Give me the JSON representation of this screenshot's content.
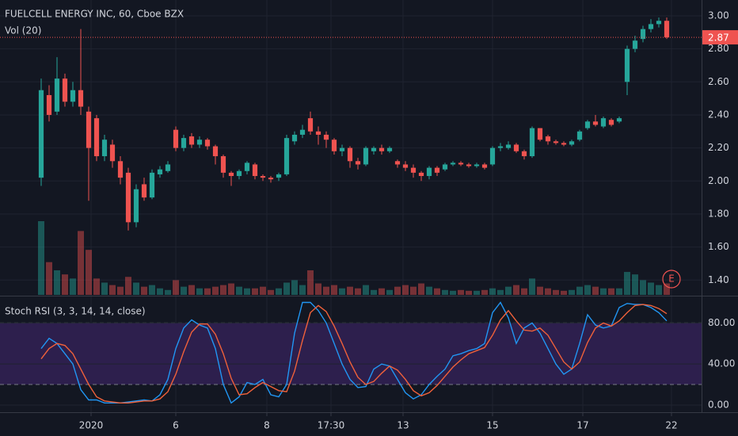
{
  "chart_data": [
    {
      "type": "candlestick",
      "title": "FUELCELL ENERGY INC, 60, Cboe BZX",
      "volume_label": "Vol (20)",
      "earnings_label": "E",
      "up_color": "#26a69a",
      "down_color": "#ef5350",
      "xlim": [
        -5.2,
        83.4
      ],
      "xticks": [
        {
          "value": 6.3,
          "label": "2020"
        },
        {
          "value": 17,
          "label": "6"
        },
        {
          "value": 28.5,
          "label": "8"
        },
        {
          "value": 36.6,
          "label": "17:30"
        },
        {
          "value": 45.7,
          "label": "13"
        },
        {
          "value": 57,
          "label": "15"
        },
        {
          "value": 68.4,
          "label": "17"
        },
        {
          "value": 79.6,
          "label": "22"
        }
      ],
      "ylim": [
        1.31,
        3.096
      ],
      "yticks": [
        {
          "value": 1.4,
          "label": "1.40"
        },
        {
          "value": 1.6,
          "label": "1.60"
        },
        {
          "value": 1.8,
          "label": "1.80"
        },
        {
          "value": 2.0,
          "label": "2.00"
        },
        {
          "value": 2.2,
          "label": "2.20"
        },
        {
          "value": 2.4,
          "label": "2.40"
        },
        {
          "value": 2.6,
          "label": "2.60"
        },
        {
          "value": 2.8,
          "label": "2.80"
        },
        {
          "value": 3.0,
          "label": "3.00"
        }
      ],
      "grid": true,
      "open": [
        2.02,
        2.52,
        2.42,
        2.62,
        2.48,
        2.55,
        2.42,
        2.38,
        2.15,
        2.22,
        2.12,
        2.05,
        1.75,
        1.98,
        1.9,
        2.04,
        2.06,
        2.31,
        2.2,
        2.27,
        2.22,
        2.25,
        2.21,
        2.15,
        2.05,
        2.03,
        2.06,
        2.1,
        2.03,
        2.02,
        2.02,
        2.04,
        2.24,
        2.28,
        2.38,
        2.3,
        2.28,
        2.25,
        2.18,
        2.2,
        2.12,
        2.1,
        2.18,
        2.2,
        2.18,
        2.12,
        2.1,
        2.08,
        2.05,
        2.03,
        2.08,
        2.07,
        2.1,
        2.11,
        2.1,
        2.09,
        2.1,
        2.1,
        2.2,
        2.2,
        2.22,
        2.18,
        2.15,
        2.32,
        2.27,
        2.24,
        2.23,
        2.22,
        2.25,
        2.32,
        2.36,
        2.33,
        2.37,
        2.36,
        2.6,
        2.8,
        2.86,
        2.92,
        2.95,
        2.97
      ],
      "high": [
        2.62,
        2.58,
        2.75,
        2.65,
        2.6,
        2.92,
        2.45,
        2.4,
        2.28,
        2.25,
        2.15,
        2.08,
        1.98,
        2.02,
        2.07,
        2.09,
        2.12,
        2.33,
        2.28,
        2.29,
        2.27,
        2.26,
        2.22,
        2.16,
        2.06,
        2.07,
        2.12,
        2.11,
        2.04,
        2.03,
        2.05,
        2.28,
        2.3,
        2.34,
        2.42,
        2.33,
        2.3,
        2.26,
        2.22,
        2.21,
        2.14,
        2.21,
        2.21,
        2.22,
        2.21,
        2.13,
        2.12,
        2.1,
        2.06,
        2.09,
        2.09,
        2.11,
        2.12,
        2.12,
        2.11,
        2.11,
        2.11,
        2.21,
        2.23,
        2.24,
        2.23,
        2.19,
        2.33,
        2.32,
        2.28,
        2.25,
        2.24,
        2.25,
        2.31,
        2.37,
        2.4,
        2.39,
        2.38,
        2.39,
        2.82,
        2.88,
        2.94,
        2.98,
        2.99,
        2.99
      ],
      "low": [
        1.97,
        2.36,
        2.4,
        2.45,
        2.45,
        2.4,
        1.88,
        2.12,
        2.12,
        2.08,
        1.98,
        1.7,
        1.72,
        1.88,
        1.89,
        2.02,
        2.05,
        2.18,
        2.18,
        2.2,
        2.2,
        2.19,
        2.1,
        2.02,
        1.97,
        2.01,
        2.04,
        2.01,
        2.0,
        1.99,
        2.0,
        2.03,
        2.22,
        2.26,
        2.28,
        2.22,
        2.2,
        2.16,
        2.15,
        2.08,
        2.07,
        2.09,
        2.16,
        2.16,
        2.17,
        2.08,
        2.06,
        2.02,
        2.0,
        2.01,
        2.03,
        2.06,
        2.09,
        2.09,
        2.08,
        2.08,
        2.07,
        2.09,
        2.18,
        2.19,
        2.17,
        2.13,
        2.14,
        2.24,
        2.22,
        2.22,
        2.21,
        2.21,
        2.24,
        2.31,
        2.33,
        2.32,
        2.33,
        2.35,
        2.52,
        2.78,
        2.84,
        2.9,
        2.93,
        2.86
      ],
      "close": [
        2.55,
        2.4,
        2.62,
        2.48,
        2.55,
        2.45,
        2.2,
        2.15,
        2.25,
        2.12,
        2.02,
        1.75,
        1.95,
        1.9,
        2.05,
        2.07,
        2.1,
        2.2,
        2.26,
        2.22,
        2.25,
        2.21,
        2.15,
        2.05,
        2.03,
        2.06,
        2.11,
        2.03,
        2.02,
        2.01,
        2.04,
        2.26,
        2.28,
        2.31,
        2.3,
        2.28,
        2.25,
        2.18,
        2.2,
        2.12,
        2.1,
        2.2,
        2.2,
        2.18,
        2.2,
        2.1,
        2.08,
        2.05,
        2.03,
        2.08,
        2.05,
        2.1,
        2.11,
        2.1,
        2.09,
        2.1,
        2.08,
        2.2,
        2.21,
        2.22,
        2.18,
        2.15,
        2.32,
        2.25,
        2.24,
        2.23,
        2.22,
        2.24,
        2.3,
        2.36,
        2.34,
        2.38,
        2.34,
        2.38,
        2.8,
        2.85,
        2.92,
        2.95,
        2.97,
        2.87
      ],
      "volume": [
        90,
        40,
        30,
        25,
        20,
        78,
        55,
        20,
        15,
        12,
        10,
        22,
        15,
        10,
        12,
        8,
        6,
        18,
        10,
        12,
        8,
        8,
        10,
        12,
        14,
        10,
        8,
        8,
        10,
        6,
        8,
        15,
        18,
        12,
        30,
        14,
        10,
        12,
        8,
        10,
        8,
        12,
        6,
        8,
        6,
        10,
        12,
        10,
        14,
        10,
        8,
        6,
        5,
        6,
        5,
        5,
        6,
        8,
        6,
        10,
        12,
        8,
        20,
        10,
        8,
        6,
        5,
        6,
        10,
        12,
        10,
        8,
        8,
        8,
        28,
        25,
        18,
        15,
        12,
        14
      ]
    },
    {
      "type": "line",
      "title": "Stoch RSI (3, 3, 14, 14, close)",
      "ylim": [
        -7,
        105
      ],
      "yticks": [
        {
          "value": 0,
          "label": "0.00"
        },
        {
          "value": 40,
          "label": "40.00"
        },
        {
          "value": 80,
          "label": "80.00"
        }
      ],
      "bands": [
        20,
        80
      ],
      "band_color": "#2d1f4d",
      "grid": true,
      "series": [
        {
          "color": "#2196f3",
          "values": [
            55,
            65,
            60,
            50,
            40,
            15,
            5,
            5,
            2,
            2,
            2,
            3,
            4,
            5,
            4,
            10,
            25,
            55,
            75,
            83,
            78,
            75,
            55,
            20,
            2,
            8,
            22,
            20,
            25,
            10,
            8,
            20,
            70,
            100,
            100,
            92,
            80,
            60,
            40,
            25,
            17,
            18,
            35,
            40,
            38,
            25,
            12,
            6,
            10,
            20,
            28,
            35,
            48,
            50,
            53,
            55,
            60,
            90,
            100,
            85,
            60,
            75,
            80,
            70,
            55,
            40,
            30,
            35,
            60,
            88,
            78,
            75,
            77,
            95,
            99,
            98,
            98,
            95,
            90,
            82
          ]
        },
        {
          "color": "#f0613a",
          "values": [
            45,
            55,
            60,
            58,
            50,
            35,
            20,
            8,
            4,
            3,
            2,
            2,
            3,
            4,
            4,
            6,
            13,
            30,
            52,
            71,
            79,
            79,
            69,
            50,
            26,
            10,
            11,
            17,
            22,
            18,
            14,
            13,
            33,
            63,
            90,
            97,
            91,
            77,
            60,
            42,
            27,
            20,
            23,
            31,
            38,
            34,
            25,
            14,
            9,
            12,
            19,
            28,
            37,
            44,
            50,
            53,
            56,
            68,
            83,
            92,
            82,
            73,
            72,
            75,
            68,
            55,
            42,
            35,
            42,
            61,
            75,
            80,
            77,
            82,
            90,
            97,
            98,
            97,
            94,
            89
          ]
        }
      ]
    }
  ]
}
